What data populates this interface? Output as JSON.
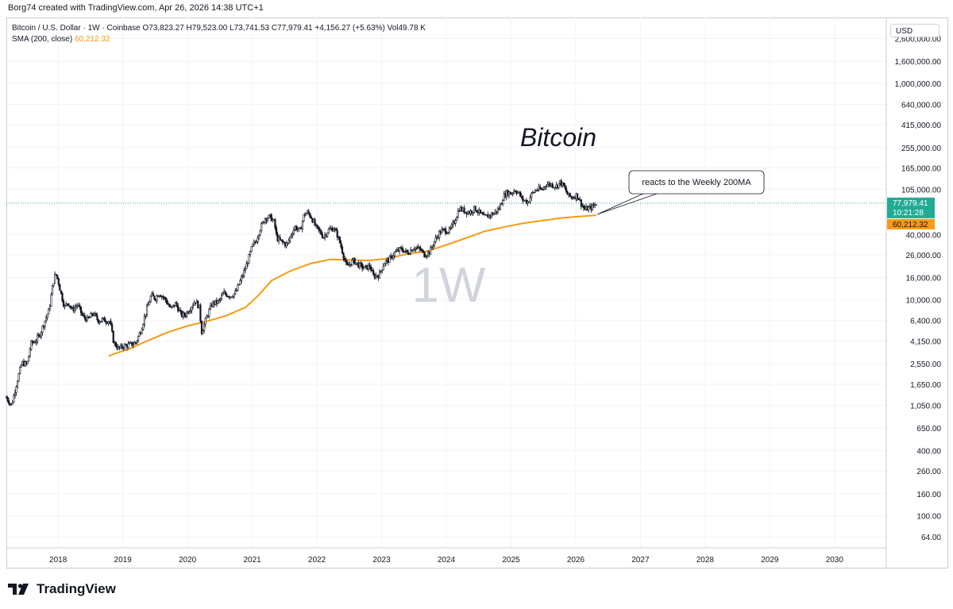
{
  "credit": "Borg74 created with TradingView.com, Apr 26, 2026 14:38 UTC+1",
  "legend": {
    "symbol": "Bitcoin / U.S. Dollar · 1W · Coinbase",
    "open": "O73,823.27",
    "high": "H79,523.00",
    "low": "L73,741.53",
    "close": "C77,979.41",
    "change": "+4,156.27 (+5.63%)",
    "volume": "Vol49.78 K",
    "sma_label": "SMA (200, close)",
    "sma_value": "60,212.32"
  },
  "currency": "USD",
  "brand": "TradingView",
  "colors": {
    "candle": "#131722",
    "sma": "#f59b14",
    "price_tag": "#22ab94",
    "sma_tag": "#f59b14",
    "price_line": "#22ab94",
    "watermark": "#d1d4dc",
    "grid": "#f0f3fa"
  },
  "chart_data": {
    "type": "candlestick",
    "scale": "log",
    "interval_watermark": "1W",
    "title": "Bitcoin",
    "annotation": "reacts to the Weekly 200MA",
    "y_ticks": [
      {
        "value": 2600000,
        "label": "2,600,000.00"
      },
      {
        "value": 1600000,
        "label": "1,600,000.00"
      },
      {
        "value": 1000000,
        "label": "1,000,000.00"
      },
      {
        "value": 640000,
        "label": "640,000.00"
      },
      {
        "value": 415000,
        "label": "415,000.00"
      },
      {
        "value": 255000,
        "label": "255,000.00"
      },
      {
        "value": 165000,
        "label": "165,000.00"
      },
      {
        "value": 105000,
        "label": "105,000.00"
      },
      {
        "value": 40000,
        "label": "40,000.00"
      },
      {
        "value": 26000,
        "label": "26,000.00"
      },
      {
        "value": 16000,
        "label": "16,000.00"
      },
      {
        "value": 10000,
        "label": "10,000.00"
      },
      {
        "value": 6400,
        "label": "6,400.00"
      },
      {
        "value": 4150,
        "label": "4,150.00"
      },
      {
        "value": 2550,
        "label": "2,550.00"
      },
      {
        "value": 1650,
        "label": "1,650.00"
      },
      {
        "value": 1050,
        "label": "1,050.00"
      },
      {
        "value": 650,
        "label": "650.00"
      },
      {
        "value": 400,
        "label": "400.00"
      },
      {
        "value": 260,
        "label": "260.00"
      },
      {
        "value": 160,
        "label": "160.00"
      },
      {
        "value": 100,
        "label": "100.00"
      },
      {
        "value": 64,
        "label": "64.00"
      }
    ],
    "x_ticks": [
      2018,
      2019,
      2020,
      2021,
      2022,
      2023,
      2024,
      2025,
      2026,
      2027,
      2028,
      2029,
      2030
    ],
    "x_range": [
      2017.2,
      2030.8
    ],
    "last_price": {
      "value": 77979.41,
      "label": "77,979.41",
      "countdown": "10:21:28"
    },
    "sma_last": {
      "value": 60212.32,
      "label": "60,212.32"
    },
    "price_path": [
      [
        2017.2,
        1250
      ],
      [
        2017.28,
        1050
      ],
      [
        2017.36,
        1700
      ],
      [
        2017.44,
        2600
      ],
      [
        2017.52,
        2500
      ],
      [
        2017.58,
        3900
      ],
      [
        2017.66,
        4200
      ],
      [
        2017.72,
        4800
      ],
      [
        2017.8,
        6500
      ],
      [
        2017.86,
        8000
      ],
      [
        2017.92,
        14000
      ],
      [
        2017.96,
        17500
      ],
      [
        2018.0,
        15000
      ],
      [
        2018.05,
        11000
      ],
      [
        2018.1,
        8500
      ],
      [
        2018.15,
        9500
      ],
      [
        2018.22,
        8000
      ],
      [
        2018.3,
        9000
      ],
      [
        2018.38,
        7000
      ],
      [
        2018.46,
        6500
      ],
      [
        2018.54,
        7500
      ],
      [
        2018.62,
        6400
      ],
      [
        2018.7,
        6500
      ],
      [
        2018.8,
        6300
      ],
      [
        2018.86,
        4000
      ],
      [
        2018.94,
        3500
      ],
      [
        2019.0,
        3700
      ],
      [
        2019.1,
        3800
      ],
      [
        2019.2,
        4000
      ],
      [
        2019.28,
        5200
      ],
      [
        2019.36,
        7800
      ],
      [
        2019.44,
        11000
      ],
      [
        2019.5,
        10200
      ],
      [
        2019.56,
        11500
      ],
      [
        2019.66,
        10000
      ],
      [
        2019.74,
        8200
      ],
      [
        2019.82,
        9200
      ],
      [
        2019.9,
        7200
      ],
      [
        2019.96,
        7200
      ],
      [
        2020.05,
        8500
      ],
      [
        2020.12,
        9800
      ],
      [
        2020.18,
        8500
      ],
      [
        2020.22,
        5000
      ],
      [
        2020.3,
        7000
      ],
      [
        2020.38,
        9200
      ],
      [
        2020.48,
        9500
      ],
      [
        2020.56,
        11500
      ],
      [
        2020.66,
        10800
      ],
      [
        2020.74,
        11500
      ],
      [
        2020.82,
        15000
      ],
      [
        2020.88,
        18500
      ],
      [
        2020.94,
        23500
      ],
      [
        2021.0,
        31000
      ],
      [
        2021.06,
        35000
      ],
      [
        2021.12,
        45000
      ],
      [
        2021.2,
        57000
      ],
      [
        2021.28,
        58000
      ],
      [
        2021.34,
        52000
      ],
      [
        2021.38,
        37000
      ],
      [
        2021.46,
        34000
      ],
      [
        2021.54,
        32000
      ],
      [
        2021.6,
        40000
      ],
      [
        2021.66,
        47000
      ],
      [
        2021.74,
        43000
      ],
      [
        2021.8,
        61000
      ],
      [
        2021.86,
        64000
      ],
      [
        2021.92,
        57000
      ],
      [
        2021.98,
        47000
      ],
      [
        2022.05,
        42000
      ],
      [
        2022.1,
        38000
      ],
      [
        2022.18,
        44000
      ],
      [
        2022.26,
        46000
      ],
      [
        2022.32,
        39000
      ],
      [
        2022.38,
        30000
      ],
      [
        2022.46,
        20000
      ],
      [
        2022.56,
        23000
      ],
      [
        2022.64,
        21000
      ],
      [
        2022.74,
        19500
      ],
      [
        2022.82,
        20500
      ],
      [
        2022.87,
        16500
      ],
      [
        2022.96,
        16800
      ],
      [
        2023.04,
        22000
      ],
      [
        2023.12,
        23500
      ],
      [
        2023.2,
        27000
      ],
      [
        2023.3,
        29500
      ],
      [
        2023.4,
        27000
      ],
      [
        2023.5,
        30500
      ],
      [
        2023.6,
        29000
      ],
      [
        2023.66,
        26000
      ],
      [
        2023.74,
        27500
      ],
      [
        2023.82,
        35000
      ],
      [
        2023.9,
        42000
      ],
      [
        2023.96,
        44000
      ],
      [
        2024.05,
        43000
      ],
      [
        2024.12,
        52000
      ],
      [
        2024.2,
        70000
      ],
      [
        2024.28,
        66000
      ],
      [
        2024.36,
        64000
      ],
      [
        2024.44,
        70000
      ],
      [
        2024.52,
        63000
      ],
      [
        2024.58,
        58000
      ],
      [
        2024.66,
        60000
      ],
      [
        2024.74,
        63000
      ],
      [
        2024.82,
        70000
      ],
      [
        2024.88,
        90000
      ],
      [
        2024.94,
        98000
      ],
      [
        2025.0,
        96000
      ],
      [
        2025.06,
        104000
      ],
      [
        2025.12,
        96000
      ],
      [
        2025.18,
        84000
      ],
      [
        2025.26,
        80000
      ],
      [
        2025.32,
        95000
      ],
      [
        2025.4,
        105000
      ],
      [
        2025.48,
        104000
      ],
      [
        2025.54,
        117000
      ],
      [
        2025.62,
        116000
      ],
      [
        2025.7,
        112000
      ],
      [
        2025.76,
        122000
      ],
      [
        2025.82,
        110000
      ],
      [
        2025.88,
        92000
      ],
      [
        2025.94,
        88000
      ],
      [
        2026.02,
        93000
      ],
      [
        2026.08,
        78000
      ],
      [
        2026.14,
        68000
      ],
      [
        2026.2,
        70000
      ],
      [
        2026.26,
        72000
      ],
      [
        2026.32,
        77979
      ]
    ],
    "sma_path": [
      [
        2018.78,
        3000
      ],
      [
        2018.9,
        3200
      ],
      [
        2019.1,
        3500
      ],
      [
        2019.4,
        4200
      ],
      [
        2019.7,
        5000
      ],
      [
        2020.0,
        5700
      ],
      [
        2020.3,
        6300
      ],
      [
        2020.6,
        7100
      ],
      [
        2020.9,
        8500
      ],
      [
        2021.1,
        11000
      ],
      [
        2021.3,
        15000
      ],
      [
        2021.6,
        18500
      ],
      [
        2021.9,
        21500
      ],
      [
        2022.2,
        23500
      ],
      [
        2022.5,
        23300
      ],
      [
        2022.8,
        23000
      ],
      [
        2023.1,
        24000
      ],
      [
        2023.4,
        26500
      ],
      [
        2023.7,
        28000
      ],
      [
        2024.0,
        32000
      ],
      [
        2024.3,
        37000
      ],
      [
        2024.6,
        43000
      ],
      [
        2024.9,
        47000
      ],
      [
        2025.2,
        51000
      ],
      [
        2025.5,
        54000
      ],
      [
        2025.8,
        57000
      ],
      [
        2026.1,
        59000
      ],
      [
        2026.32,
        60212
      ]
    ]
  }
}
